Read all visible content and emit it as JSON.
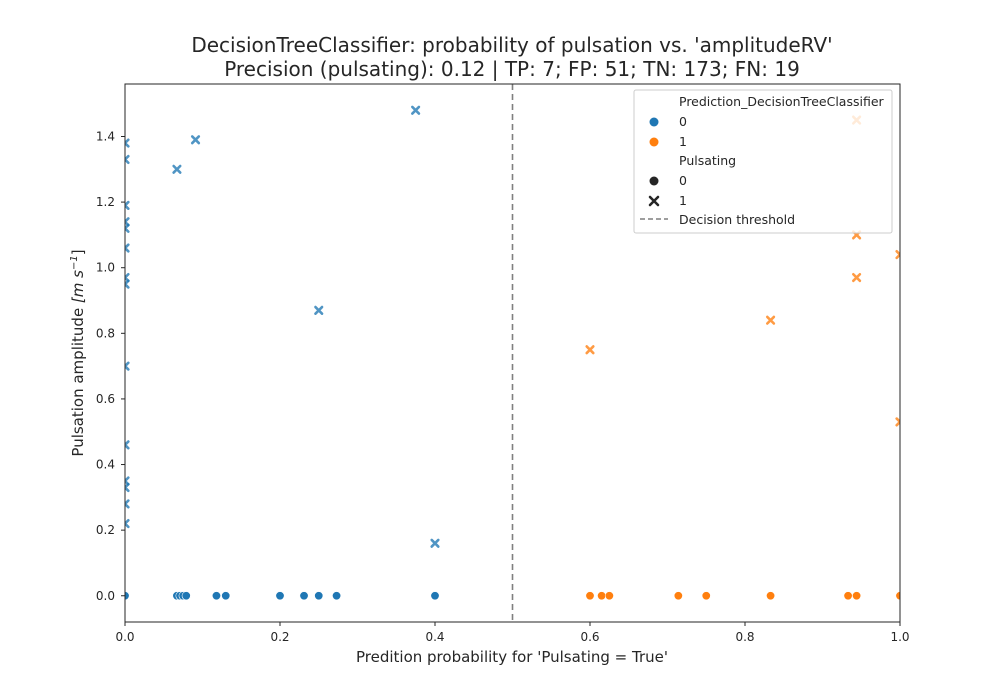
{
  "chart_data": {
    "type": "scatter",
    "title": "DecisionTreeClassifier: probability of pulsation vs. 'amplitudeRV'",
    "subtitle": "Precision (pulsating): 0.12 | TP: 7; FP: 51; TN: 173; FN: 19",
    "xlabel": "Predition probability for 'Pulsating = True'",
    "ylabel": "Pulsation amplitude",
    "ylabel_unit": "[m s",
    "ylabel_unit_exp": "−1",
    "ylabel_unit_close": "]",
    "xlim": [
      0,
      1
    ],
    "ylim": [
      -0.08,
      1.56
    ],
    "xticks": [
      0.0,
      0.2,
      0.4,
      0.6,
      0.8,
      1.0
    ],
    "yticks": [
      0.0,
      0.2,
      0.4,
      0.6,
      0.8,
      1.0,
      1.2,
      1.4
    ],
    "grid": false,
    "decision_threshold": 0.5,
    "legend_placement": "top-right",
    "legend": {
      "hue_title": "Prediction_DecisionTreeClassifier",
      "hue_entries": [
        {
          "label": "0",
          "color": "#1f77b4"
        },
        {
          "label": "1",
          "color": "#ff7f0e"
        }
      ],
      "style_title": "Pulsating",
      "style_entries": [
        {
          "label": "0",
          "marker": "circle"
        },
        {
          "label": "1",
          "marker": "x"
        }
      ],
      "threshold_label": "Decision threshold"
    },
    "series": [
      {
        "prediction": "0",
        "pulsating": "0",
        "marker": "circle",
        "color": "#1f77b4",
        "points": [
          [
            0.0,
            0
          ],
          [
            0.067,
            0
          ],
          [
            0.071,
            0
          ],
          [
            0.075,
            0
          ],
          [
            0.079,
            0
          ],
          [
            0.118,
            0
          ],
          [
            0.13,
            0
          ],
          [
            0.2,
            0
          ],
          [
            0.231,
            0
          ],
          [
            0.25,
            0
          ],
          [
            0.273,
            0
          ],
          [
            0.4,
            0
          ]
        ]
      },
      {
        "prediction": "0",
        "pulsating": "1",
        "marker": "x",
        "color": "#1f77b4",
        "points": [
          [
            0.0,
            1.38
          ],
          [
            0.0,
            1.33
          ],
          [
            0.0,
            1.19
          ],
          [
            0.0,
            1.14
          ],
          [
            0.0,
            1.12
          ],
          [
            0.0,
            1.06
          ],
          [
            0.0,
            0.97
          ],
          [
            0.0,
            0.95
          ],
          [
            0.0,
            0.7
          ],
          [
            0.0,
            0.46
          ],
          [
            0.0,
            0.35
          ],
          [
            0.0,
            0.33
          ],
          [
            0.0,
            0.28
          ],
          [
            0.0,
            0.22
          ],
          [
            0.067,
            1.3
          ],
          [
            0.091,
            1.39
          ],
          [
            0.25,
            0.87
          ],
          [
            0.375,
            1.48
          ],
          [
            0.4,
            0.16
          ]
        ]
      },
      {
        "prediction": "1",
        "pulsating": "0",
        "marker": "circle",
        "color": "#ff7f0e",
        "points": [
          [
            0.6,
            0
          ],
          [
            0.615,
            0
          ],
          [
            0.625,
            0
          ],
          [
            0.714,
            0
          ],
          [
            0.75,
            0
          ],
          [
            0.833,
            0
          ],
          [
            0.933,
            0
          ],
          [
            0.944,
            0
          ],
          [
            1.0,
            0
          ]
        ]
      },
      {
        "prediction": "1",
        "pulsating": "1",
        "marker": "x",
        "color": "#ff7f0e",
        "points": [
          [
            0.6,
            0.75
          ],
          [
            0.833,
            0.84
          ],
          [
            0.944,
            1.45
          ],
          [
            0.944,
            1.1
          ],
          [
            0.944,
            0.97
          ],
          [
            1.0,
            1.04
          ],
          [
            1.0,
            0.53
          ]
        ]
      }
    ]
  }
}
